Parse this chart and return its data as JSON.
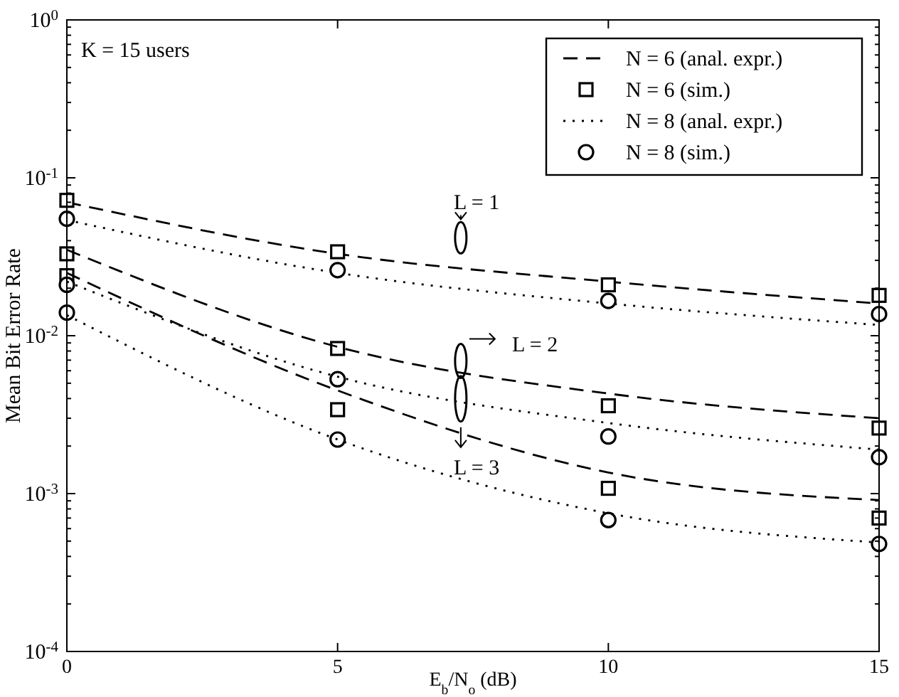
{
  "chart_data": {
    "type": "line",
    "xlabel": "E$_{b}$/N$_{o}$ (dB)",
    "ylabel": "Mean Bit Error Rate",
    "log": "y",
    "xlim": [
      0,
      15
    ],
    "xticks": [
      0,
      5,
      10,
      15
    ],
    "ylim": [
      0.0001,
      1
    ],
    "yticks": [
      {
        "value": 0.0001,
        "label": "10$^{-4}$"
      },
      {
        "value": 0.001,
        "label": "10$^{-3}$"
      },
      {
        "value": 0.01,
        "label": "10$^{-2}$"
      },
      {
        "value": 0.1,
        "label": "10$^{-1}$"
      },
      {
        "value": 1,
        "label": "10$^{0}$"
      }
    ],
    "grid": false,
    "legend": "top right",
    "annotations": [
      "K = 15 users",
      "L = 1",
      "L = 2",
      "L = 3"
    ],
    "series": [
      {
        "name": "N = 6 (anal. expr.)",
        "line_style": "dashed",
        "marker": "none",
        "color": "#000000",
        "x": [
          0,
          5,
          10,
          15
        ],
        "values": [
          0.07,
          0.033,
          0.022,
          0.016
        ]
      },
      {
        "name": "N = 6 (sim.)",
        "type": "scatter",
        "marker": "square",
        "color": "#000000",
        "x": [
          0,
          5,
          10,
          15,
          0,
          5,
          10,
          15,
          0,
          5,
          10,
          15
        ],
        "values": [
          0.072,
          0.034,
          0.021,
          0.018,
          0.033,
          0.0083,
          0.0036,
          0.0026,
          0.024,
          0.0034,
          0.00108,
          0.0007
        ]
      },
      {
        "name": "N = 8 (anal. expr.)",
        "line_style": "dotted",
        "marker": "none",
        "color": "#000000",
        "x": [
          0,
          5,
          10,
          15
        ],
        "values": [
          0.054,
          0.025,
          0.016,
          0.0117
        ]
      },
      {
        "name": "N = 8 (sim.)",
        "type": "scatter",
        "marker": "circle",
        "color": "#000000",
        "x": [
          0,
          5,
          10,
          15,
          0,
          5,
          10,
          15,
          0,
          5,
          10,
          15
        ],
        "values": [
          0.055,
          0.026,
          0.0166,
          0.0137,
          0.021,
          0.0053,
          0.0023,
          0.0017,
          0.014,
          0.0022,
          0.00068,
          0.00048
        ]
      },
      {
        "type": "line",
        "line_style": "dashed",
        "marker": "none",
        "color": "#000000",
        "x": [
          0,
          5,
          10,
          15
        ],
        "values": [
          0.035,
          0.0085,
          0.0043,
          0.003
        ]
      },
      {
        "type": "line",
        "line_style": "dashed",
        "marker": "none",
        "color": "#000000",
        "x": [
          0,
          5,
          10,
          15
        ],
        "values": [
          0.025,
          0.0045,
          0.00136,
          0.00091
        ]
      },
      {
        "type": "line",
        "line_style": "dotted",
        "marker": "none",
        "color": "#000000",
        "x": [
          0,
          5,
          10,
          15
        ],
        "values": [
          0.022,
          0.0055,
          0.0028,
          0.0019
        ]
      },
      {
        "type": "line",
        "line_style": "dotted",
        "marker": "none",
        "color": "#000000",
        "x": [
          0,
          5,
          10,
          15
        ],
        "values": [
          0.0135,
          0.0022,
          0.00075,
          0.00049
        ]
      }
    ]
  }
}
